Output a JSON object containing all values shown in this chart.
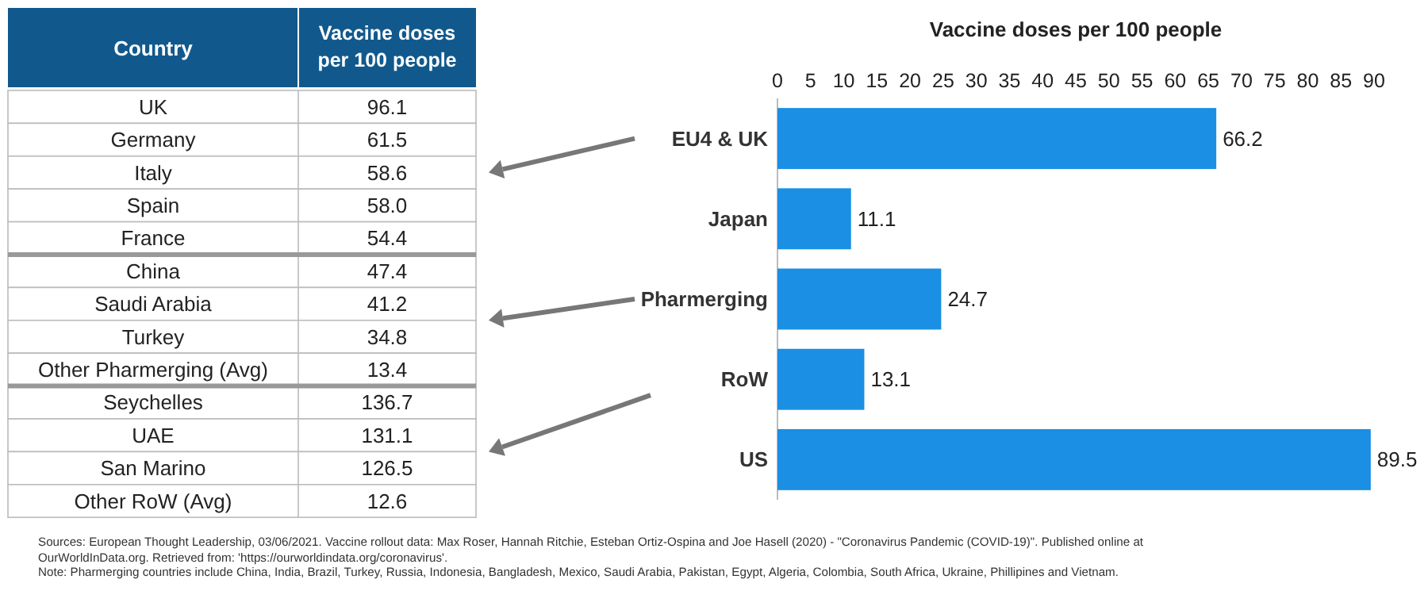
{
  "chart_data": [
    {
      "type": "other",
      "xlabel": "Country",
      "ylabel": "Vaccine doses per 100 people",
      "categories": [
        "UK",
        "Germany",
        "Italy",
        "Spain",
        "France",
        "China",
        "Saudi Arabia",
        "Turkey",
        "Other Pharmerging (Avg)",
        "Seychelles",
        "UAE",
        "San Marino",
        "Other RoW (Avg)"
      ],
      "value_labels": [
        "96.1",
        "61.5",
        "58.6",
        "58.0",
        "54.4",
        "47.4",
        "41.2",
        "34.8",
        "13.4",
        "136.7",
        "131.1",
        "126.5",
        "12.6"
      ],
      "color": "#11598c"
    },
    {
      "type": "bar",
      "orientation": "horizontal",
      "title": "Vaccine doses per 100 people",
      "categories": [
        "EU4 & UK",
        "Japan",
        "Pharmerging",
        "RoW",
        "US"
      ],
      "values": [
        66.2,
        11.1,
        24.7,
        13.1,
        89.5
      ],
      "color": "#1a8fe3",
      "xlim": [
        0,
        90
      ],
      "xticks": [
        0,
        5,
        10,
        15,
        20,
        25,
        30,
        35,
        40,
        45,
        50,
        55,
        60,
        65,
        70,
        75,
        80,
        85,
        90
      ],
      "data_labels": true,
      "grid": false,
      "annotations": [
        "Sources: European Thought Leadership, 03/06/2021. Vaccine rollout data: Max Roser, Hannah Ritchie, Esteban Ortiz-Ospina and Joe Hasell (2020) - \"Coronavirus Pandemic (COVID-19)\". Published online at OurWorldInData.org. Retrieved from: 'https://ourworldindata.org/coronavirus'.",
        "Note: Pharmerging countries include China, India, Brazil, Turkey, Russia, Indonesia, Bangladesh, Mexico, Saudi Arabia, Pakistan, Egypt, Algeria, Colombia, South Africa, Ukraine, Phillipines and Vietnam."
      ]
    }
  ]
}
